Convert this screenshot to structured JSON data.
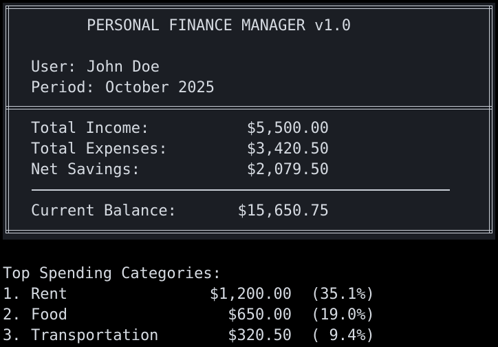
{
  "app": {
    "title": "PERSONAL FINANCE MANAGER v1.0"
  },
  "user": {
    "label": "User:",
    "name": "John Doe"
  },
  "period": {
    "label": "Period:",
    "value": "October 2025"
  },
  "summary": {
    "income_label": "Total Income:",
    "income_value": "$5,500.00",
    "expenses_label": "Total Expenses:",
    "expenses_value": "$3,420.50",
    "savings_label": "Net Savings:",
    "savings_value": "$2,079.50"
  },
  "balance": {
    "label": "Current Balance:",
    "value": "$15,650.75"
  },
  "top_spending": {
    "heading": "Top Spending Categories:",
    "items": [
      {
        "num": "1.",
        "name": "Rent",
        "amount": "$1,200.00",
        "percent": "(35.1%)"
      },
      {
        "num": "2.",
        "name": "Food",
        "amount": "$650.00",
        "percent": "(19.0%)"
      },
      {
        "num": "3.",
        "name": "Transportation",
        "amount": "$320.50",
        "percent": "( 9.4%)"
      }
    ]
  },
  "colors": {
    "background": "#000000",
    "panel": "#1b1e24",
    "text": "#d6dbe2",
    "border": "#c9ced6"
  }
}
